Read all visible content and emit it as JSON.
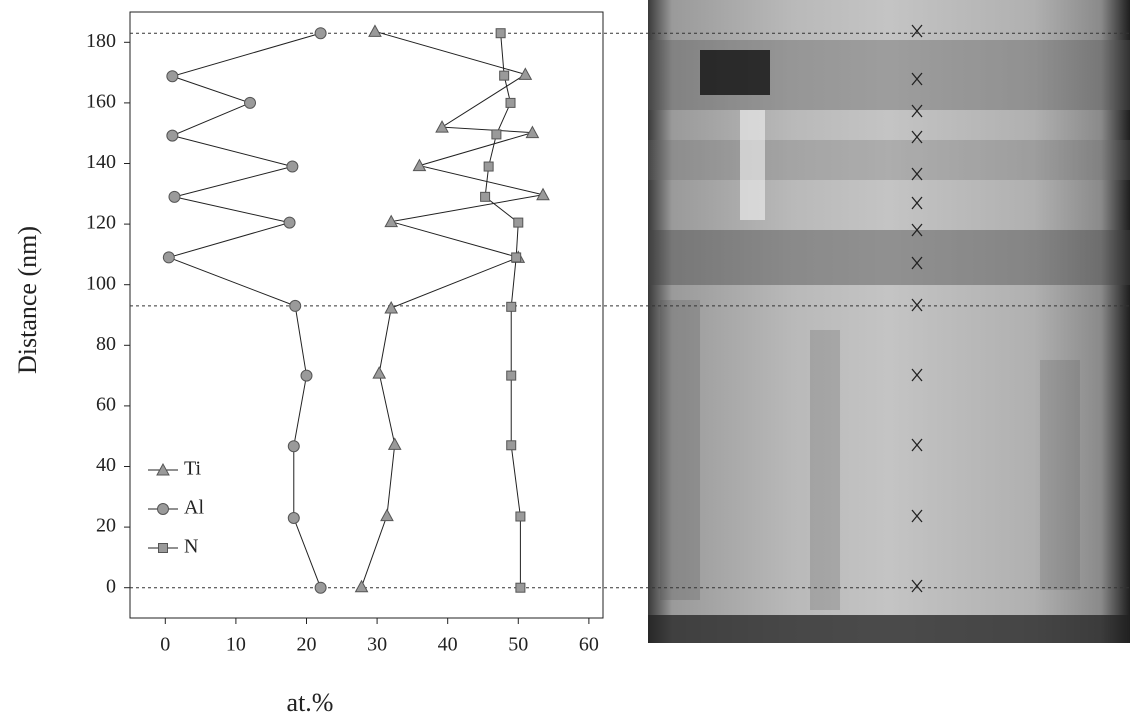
{
  "chart_data": {
    "type": "line",
    "xlabel": "at.%",
    "ylabel": "Distance (nm)",
    "xlim": [
      -5,
      62
    ],
    "xticks": [
      0,
      10,
      20,
      30,
      40,
      50,
      60
    ],
    "ylim": [
      -10,
      190
    ],
    "yticks": [
      0,
      20,
      40,
      60,
      80,
      100,
      120,
      140,
      160,
      180
    ],
    "hlines": [
      0,
      93,
      183
    ],
    "legend": "lower left",
    "series": [
      {
        "name": "Ti",
        "marker": "triangle",
        "color": "#9a9a9a",
        "x": [
          29.7,
          51,
          39.2,
          52,
          36,
          53.5,
          32,
          50,
          32,
          30.3,
          32.5,
          31.4,
          27.8
        ],
        "values": [
          183.6,
          169.4,
          152,
          150.2,
          139.3,
          129.7,
          120.8,
          109,
          92.3,
          70.8,
          47.3,
          23.8,
          0.3
        ]
      },
      {
        "name": "Al",
        "marker": "circle",
        "color": "#9a9a9a",
        "x": [
          22,
          1,
          12,
          1,
          18,
          1.3,
          17.6,
          0.5,
          18.4,
          20,
          18.2,
          18.2,
          22
        ],
        "values": [
          183,
          168.8,
          160,
          149.2,
          139,
          129,
          120.5,
          109,
          93,
          70,
          46.7,
          23,
          0
        ]
      },
      {
        "name": "N",
        "marker": "square",
        "color": "#9a9a9a",
        "x": [
          47.5,
          48,
          48.9,
          46.9,
          45.8,
          45.3,
          50,
          49.7,
          49,
          49,
          49,
          50.3,
          50.3
        ],
        "values": [
          183,
          169,
          160,
          149.6,
          139,
          129,
          120.5,
          109,
          92.7,
          70,
          47,
          23.5,
          0
        ]
      }
    ]
  }
}
